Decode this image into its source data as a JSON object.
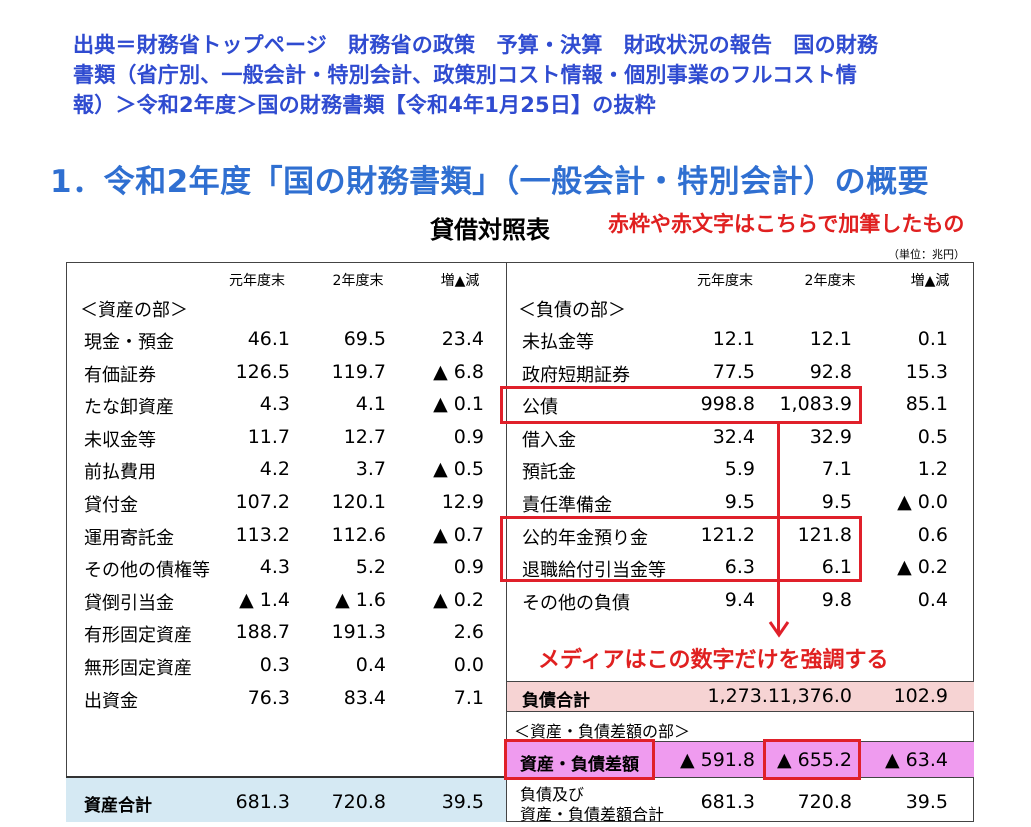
{
  "source_note": [
    "出典＝財務省トップページ　財務省の政策　予算・決算　財政状況の報告　国の財務",
    "書類（省庁別、一般会計・特別会計、政策別コスト情報・個別事業のフルコスト情",
    "報）＞令和2年度＞国の財務書類【令和4年1月25日】の抜粋"
  ],
  "heading": "1．令和2年度「国の財務書類」（一般会計・特別会計）の概要",
  "subtitle": "貸借対照表",
  "annotation_note": "赤枠や赤文字はこちらで加筆したもの",
  "unit": "（単位：兆円）",
  "columns": {
    "prev": "元年度末",
    "curr": "2年度末",
    "diff": "増▲減"
  },
  "assets": {
    "section": "＜資産の部＞",
    "rows": [
      {
        "label": "現金・預金",
        "prev": "46.1",
        "curr": "69.5",
        "diff": "23.4"
      },
      {
        "label": "有価証券",
        "prev": "126.5",
        "curr": "119.7",
        "diff": "▲ 6.8"
      },
      {
        "label": "たな卸資産",
        "prev": "4.3",
        "curr": "4.1",
        "diff": "▲ 0.1"
      },
      {
        "label": "未収金等",
        "prev": "11.7",
        "curr": "12.7",
        "diff": "0.9"
      },
      {
        "label": "前払費用",
        "prev": "4.2",
        "curr": "3.7",
        "diff": "▲ 0.5"
      },
      {
        "label": "貸付金",
        "prev": "107.2",
        "curr": "120.1",
        "diff": "12.9"
      },
      {
        "label": "運用寄託金",
        "prev": "113.2",
        "curr": "112.6",
        "diff": "▲ 0.7"
      },
      {
        "label": "その他の債権等",
        "prev": "4.3",
        "curr": "5.2",
        "diff": "0.9"
      },
      {
        "label": "貸倒引当金",
        "prev": "▲ 1.4",
        "curr": "▲ 1.6",
        "diff": "▲ 0.2"
      },
      {
        "label": "有形固定資産",
        "prev": "188.7",
        "curr": "191.3",
        "diff": "2.6"
      },
      {
        "label": "無形固定資産",
        "prev": "0.3",
        "curr": "0.4",
        "diff": "0.0"
      },
      {
        "label": "出資金",
        "prev": "76.3",
        "curr": "83.4",
        "diff": "7.1"
      }
    ],
    "total": {
      "label": "資産合計",
      "prev": "681.3",
      "curr": "720.8",
      "diff": "39.5"
    }
  },
  "liabilities": {
    "section": "＜負債の部＞",
    "rows": [
      {
        "label": "未払金等",
        "prev": "12.1",
        "curr": "12.1",
        "diff": "0.1"
      },
      {
        "label": "政府短期証券",
        "prev": "77.5",
        "curr": "92.8",
        "diff": "15.3"
      },
      {
        "label": "公債",
        "prev": "998.8",
        "curr": "1,083.9",
        "diff": "85.1"
      },
      {
        "label": "借入金",
        "prev": "32.4",
        "curr": "32.9",
        "diff": "0.5"
      },
      {
        "label": "預託金",
        "prev": "5.9",
        "curr": "7.1",
        "diff": "1.2"
      },
      {
        "label": "責任準備金",
        "prev": "9.5",
        "curr": "9.5",
        "diff": "▲ 0.0"
      },
      {
        "label": "公的年金預り金",
        "prev": "121.2",
        "curr": "121.8",
        "diff": "0.6"
      },
      {
        "label": "退職給付引当金等",
        "prev": "6.3",
        "curr": "6.1",
        "diff": "▲ 0.2"
      },
      {
        "label": "その他の負債",
        "prev": "9.4",
        "curr": "9.8",
        "diff": "0.4"
      }
    ],
    "total": {
      "label": "負債合計",
      "prev": "1,273.1",
      "curr": "1,376.0",
      "diff": "102.9"
    }
  },
  "net": {
    "section": "＜資産・負債差額の部＞",
    "diff_row": {
      "label": "資産・負債差額",
      "prev": "▲ 591.8",
      "curr": "▲ 655.2",
      "diff": "▲ 63.4"
    },
    "grand_total": {
      "label1": "負債及び",
      "label2": "資産・負債差額合計",
      "prev": "681.3",
      "curr": "720.8",
      "diff": "39.5"
    }
  },
  "media_note": "メディアはこの数字だけを強調する",
  "accent_color": "#e0202a"
}
